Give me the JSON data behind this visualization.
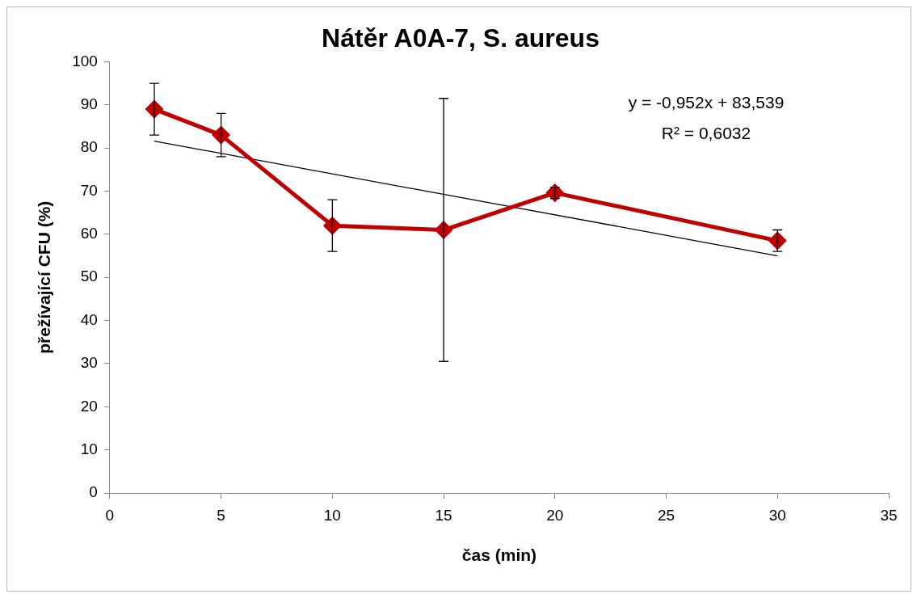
{
  "chart_data": {
    "type": "line",
    "title": "Nátěr A0A-7, S. aureus",
    "xlabel": "čas (min)",
    "ylabel": "přežívající CFU (%)",
    "xlim": [
      0,
      35
    ],
    "xticks": [
      0,
      5,
      10,
      15,
      20,
      25,
      30,
      35
    ],
    "ylim": [
      0,
      100
    ],
    "yticks": [
      0,
      10,
      20,
      30,
      40,
      50,
      60,
      70,
      80,
      90,
      100
    ],
    "grid": false,
    "legend": false,
    "marker": "diamond",
    "line_style": "solid",
    "annotations": [
      "y = -0,952x + 83,539",
      "R² = 0,6032"
    ],
    "series": [
      {
        "x": [
          2,
          5,
          10,
          15,
          20,
          30
        ],
        "values": [
          89,
          83,
          62,
          61,
          69.6,
          58.5
        ],
        "errors": [
          6,
          5,
          6,
          30.5,
          1.3,
          2.5
        ],
        "color": "#c00000"
      },
      {
        "type": "line",
        "x": [
          2,
          30
        ],
        "values": [
          81.6,
          55
        ],
        "color": "#000000",
        "marker": "none"
      }
    ]
  }
}
